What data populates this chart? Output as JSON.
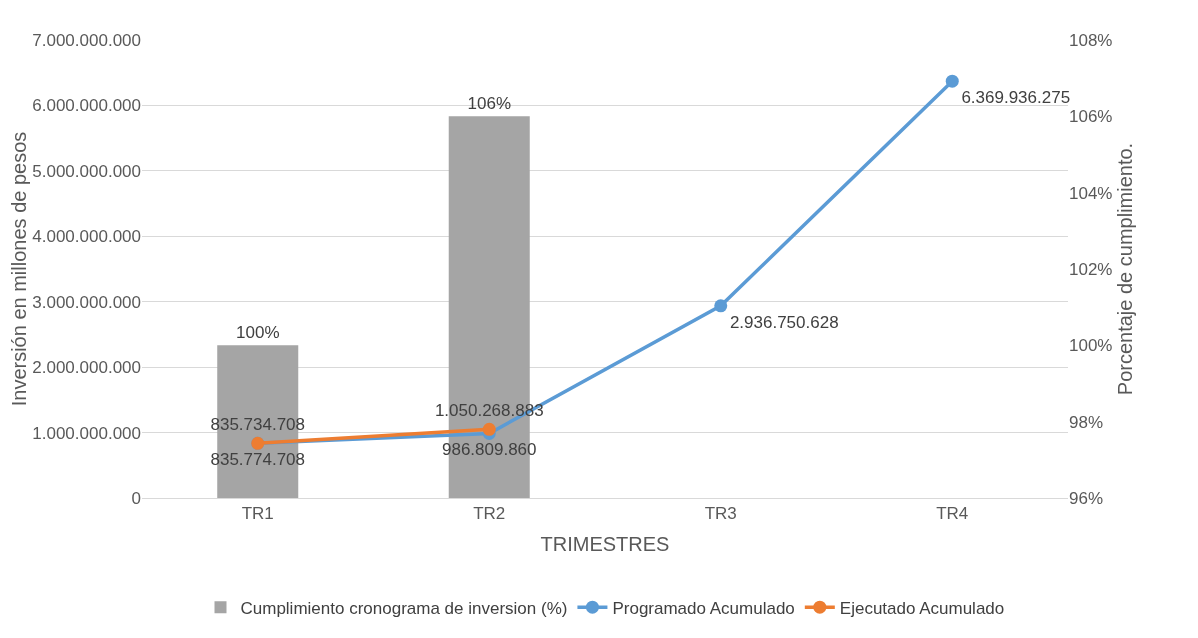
{
  "chart_data": {
    "type": "bar",
    "xlabel": "TRIMESTRES",
    "ylabel": "Inversión en millones de pesos",
    "y2label": "Porcentaje de cumplimiento.",
    "categories": [
      "TR1",
      "TR2",
      "TR3",
      "TR4"
    ],
    "series": [
      {
        "name": "Cumplimiento cronograma de inversion (%)",
        "axis": "y2",
        "color": "#a5a5a5",
        "values": [
          100,
          106,
          null,
          null
        ],
        "value_labels": [
          "100%",
          "106%",
          null,
          null
        ]
      },
      {
        "name": "Programado Acumulado",
        "type": "line",
        "color": "#5b9bd5",
        "values": [
          835774708,
          986809860,
          2936750628,
          6369936275
        ],
        "value_labels": [
          "835.774.708",
          "986.809.860",
          "2.936.750.628",
          "6.369.936.275"
        ]
      },
      {
        "name": "Ejecutado Acumulado",
        "type": "line",
        "color": "#ed7d31",
        "values": [
          835734708,
          1050268883,
          null,
          null
        ],
        "value_labels": [
          "835.734.708",
          "1.050.268.883",
          null,
          null
        ]
      }
    ],
    "ylim": [
      0,
      7000000000
    ],
    "yticks": [
      0,
      {
        "value": 1000000000,
        "label": "1.000.000.000"
      },
      {
        "value": 2000000000,
        "label": "2.000.000.000"
      },
      {
        "value": 3000000000,
        "label": "3.000.000.000"
      },
      {
        "value": 4000000000,
        "label": "4.000.000.000"
      },
      {
        "value": 5000000000,
        "label": "5.000.000.000"
      },
      {
        "value": 6000000000,
        "label": "6.000.000.000"
      },
      {
        "value": 7000000000,
        "label": "7.000.000.000"
      }
    ],
    "y2lim": [
      96,
      108
    ],
    "y2ticks": [
      {
        "value": 96,
        "label": "96%"
      },
      {
        "value": 98,
        "label": "98%"
      },
      {
        "value": 100,
        "label": "100%"
      },
      {
        "value": 102,
        "label": "102%"
      },
      {
        "value": 104,
        "label": "104%"
      },
      {
        "value": 106,
        "label": "106%"
      },
      {
        "value": 108,
        "label": "108%"
      }
    ],
    "grid": "y",
    "legend": "bottom",
    "marker": "circle",
    "line_style": "solid"
  }
}
